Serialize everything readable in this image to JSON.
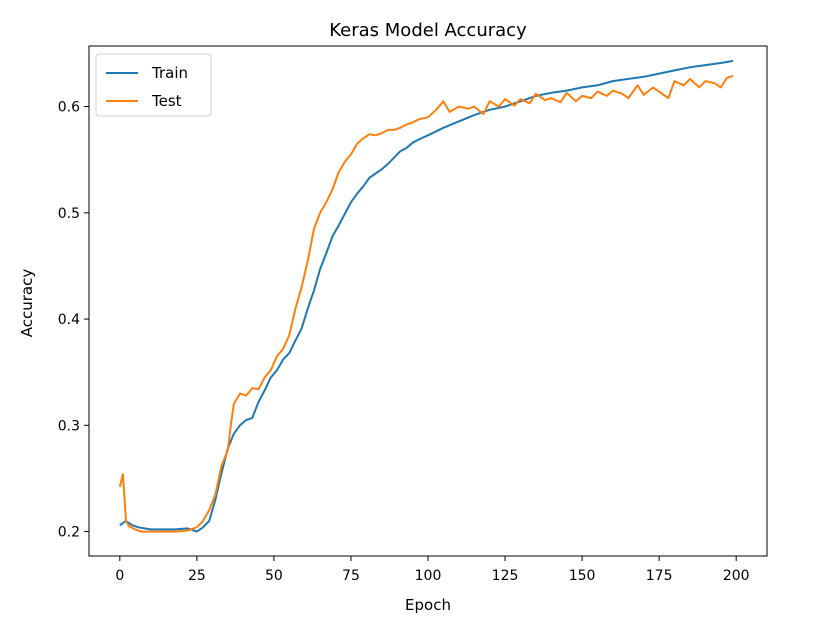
{
  "chart_data": {
    "type": "line",
    "title": "Keras Model Accuracy",
    "xlabel": "Epoch",
    "ylabel": "Accuracy",
    "xlim": [
      -10,
      210
    ],
    "ylim": [
      0.177,
      0.657
    ],
    "xticks": [
      0,
      25,
      50,
      75,
      100,
      125,
      150,
      175,
      200
    ],
    "yticks": [
      0.2,
      0.3,
      0.4,
      0.5,
      0.6
    ],
    "ytick_labels": [
      "0.2",
      "0.3",
      "0.4",
      "0.5",
      "0.6"
    ],
    "legend_position": "top-left",
    "grid": false,
    "series": [
      {
        "name": "Train",
        "color": "#1f77b4",
        "x": [
          0,
          2,
          4,
          6,
          8,
          10,
          14,
          18,
          22,
          25,
          27,
          29,
          31,
          33,
          35,
          37,
          39,
          41,
          43,
          45,
          47,
          49,
          51,
          53,
          55,
          57,
          59,
          61,
          63,
          65,
          67,
          69,
          71,
          73,
          75,
          77,
          79,
          81,
          83,
          85,
          87,
          89,
          91,
          93,
          95,
          97,
          100,
          105,
          110,
          115,
          120,
          125,
          130,
          135,
          140,
          145,
          150,
          155,
          160,
          165,
          170,
          175,
          180,
          185,
          190,
          195,
          199
        ],
        "y": [
          0.206,
          0.21,
          0.206,
          0.204,
          0.203,
          0.202,
          0.202,
          0.202,
          0.203,
          0.2,
          0.204,
          0.21,
          0.23,
          0.255,
          0.278,
          0.292,
          0.3,
          0.305,
          0.307,
          0.322,
          0.333,
          0.345,
          0.352,
          0.362,
          0.368,
          0.38,
          0.391,
          0.41,
          0.427,
          0.447,
          0.462,
          0.478,
          0.488,
          0.499,
          0.51,
          0.518,
          0.525,
          0.533,
          0.537,
          0.541,
          0.546,
          0.552,
          0.558,
          0.561,
          0.566,
          0.569,
          0.573,
          0.58,
          0.586,
          0.592,
          0.597,
          0.6,
          0.605,
          0.61,
          0.613,
          0.615,
          0.618,
          0.62,
          0.624,
          0.626,
          0.628,
          0.631,
          0.634,
          0.637,
          0.639,
          0.641,
          0.643
        ]
      },
      {
        "name": "Test",
        "color": "#ff7f0e",
        "x": [
          0,
          1,
          2,
          3,
          5,
          7,
          10,
          14,
          18,
          22,
          25,
          27,
          29,
          31,
          33,
          35,
          36,
          37,
          39,
          41,
          43,
          45,
          47,
          49,
          51,
          53,
          55,
          57,
          59,
          61,
          63,
          65,
          67,
          69,
          71,
          73,
          75,
          77,
          79,
          81,
          83,
          85,
          87,
          89,
          91,
          93,
          95,
          97,
          100,
          103,
          105,
          107,
          110,
          113,
          115,
          118,
          120,
          123,
          125,
          128,
          130,
          133,
          135,
          138,
          140,
          143,
          145,
          148,
          150,
          153,
          155,
          158,
          160,
          163,
          165,
          168,
          170,
          173,
          175,
          178,
          180,
          183,
          185,
          188,
          190,
          193,
          195,
          197,
          199
        ],
        "y": [
          0.242,
          0.254,
          0.21,
          0.205,
          0.202,
          0.2,
          0.2,
          0.2,
          0.2,
          0.201,
          0.204,
          0.21,
          0.22,
          0.235,
          0.262,
          0.276,
          0.3,
          0.32,
          0.33,
          0.328,
          0.335,
          0.334,
          0.345,
          0.352,
          0.365,
          0.372,
          0.385,
          0.41,
          0.43,
          0.455,
          0.485,
          0.5,
          0.51,
          0.522,
          0.538,
          0.548,
          0.555,
          0.565,
          0.57,
          0.574,
          0.573,
          0.575,
          0.578,
          0.578,
          0.58,
          0.583,
          0.585,
          0.588,
          0.59,
          0.598,
          0.605,
          0.595,
          0.6,
          0.598,
          0.6,
          0.593,
          0.605,
          0.6,
          0.607,
          0.601,
          0.607,
          0.603,
          0.612,
          0.606,
          0.608,
          0.604,
          0.613,
          0.605,
          0.61,
          0.608,
          0.614,
          0.61,
          0.615,
          0.612,
          0.608,
          0.62,
          0.611,
          0.618,
          0.614,
          0.608,
          0.624,
          0.62,
          0.626,
          0.618,
          0.624,
          0.622,
          0.618,
          0.627,
          0.629
        ]
      }
    ]
  }
}
